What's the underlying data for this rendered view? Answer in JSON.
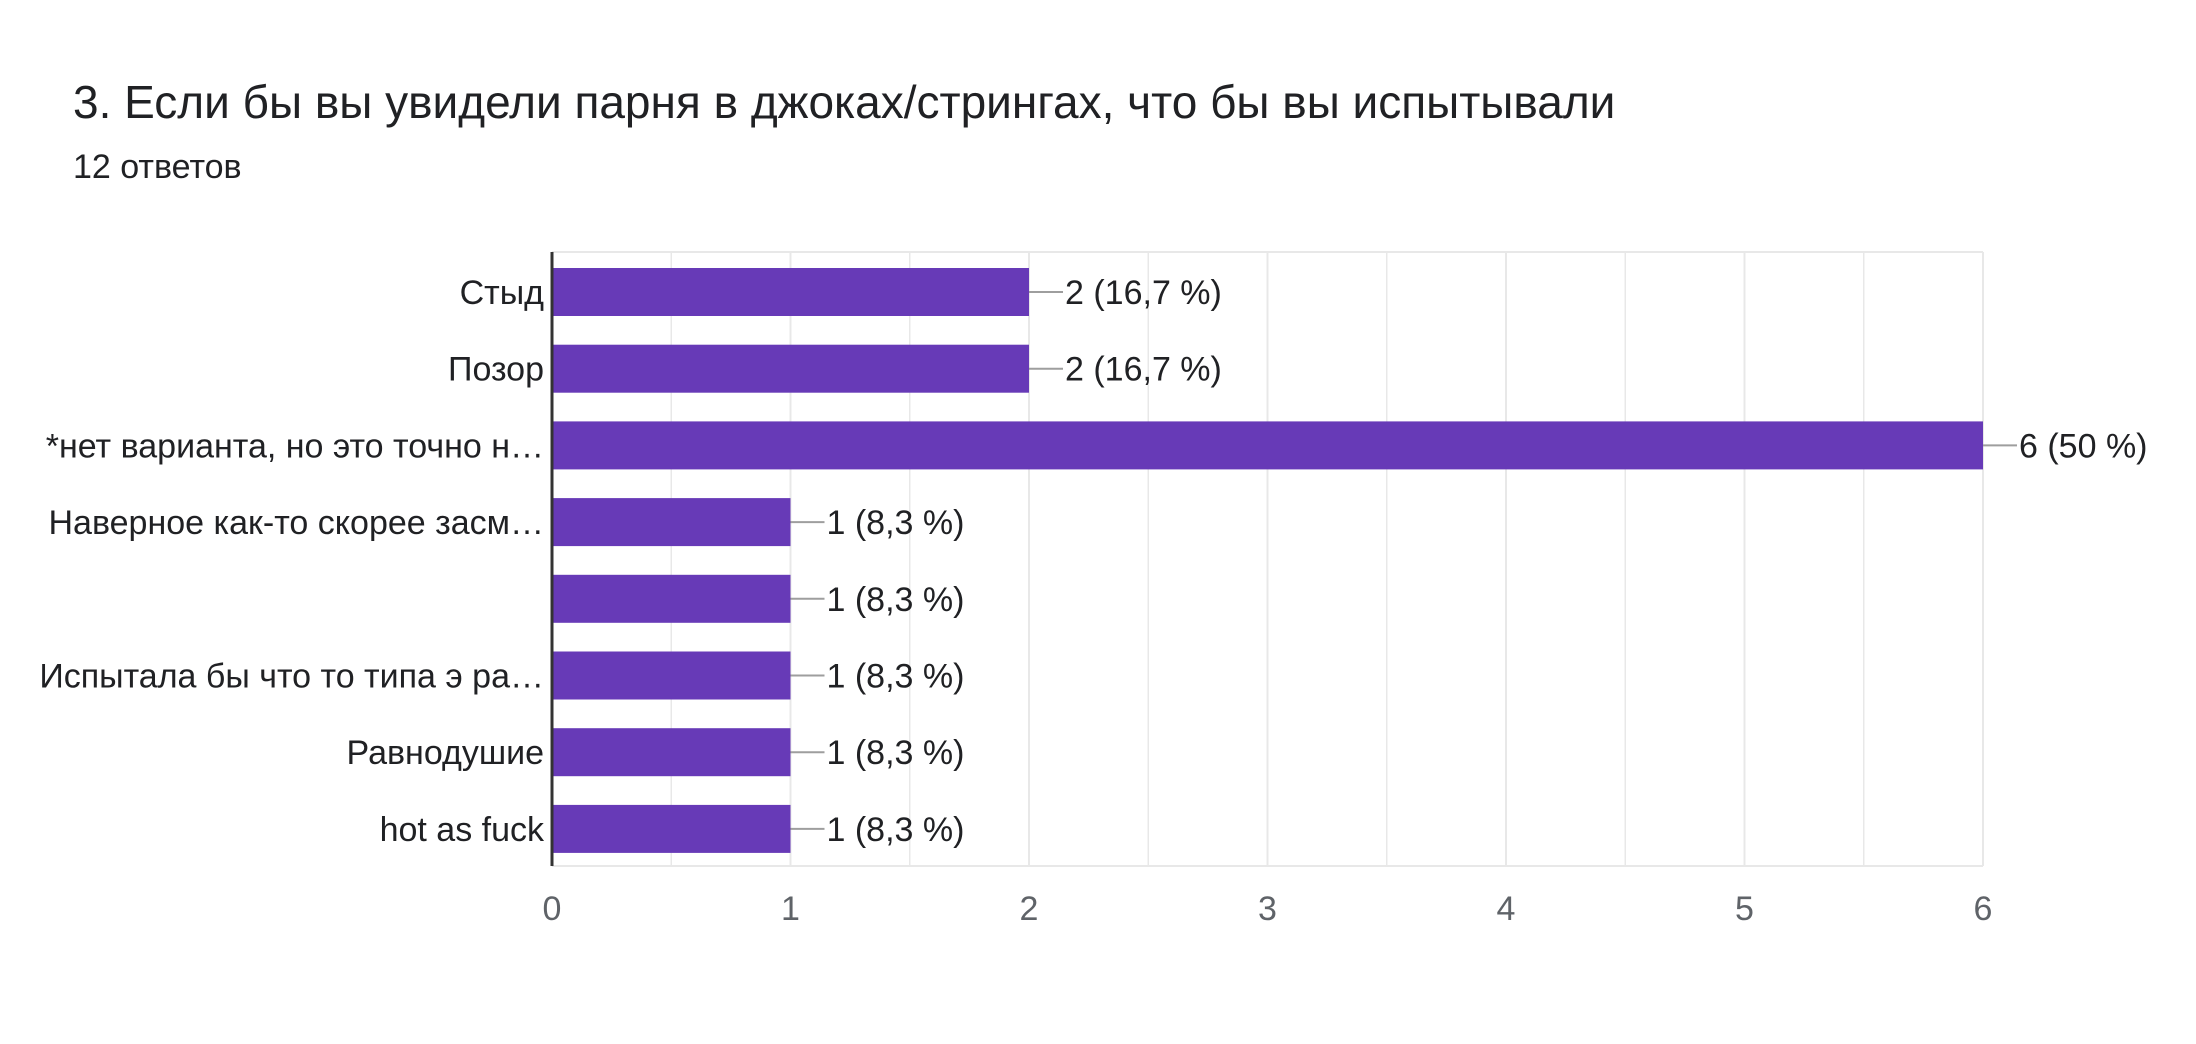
{
  "question": {
    "title": "3. Если бы вы увидели парня в джоках/стрингах, что бы вы испытывали",
    "responses": "12 ответов"
  },
  "colors": {
    "bar": "#673ab7",
    "grid": "#e8e8e8",
    "axis": "#333333",
    "leader": "#9e9e9e"
  },
  "chart_data": {
    "type": "bar",
    "orientation": "horizontal",
    "categories": [
      "Стыд",
      "Позор",
      "*нет варианта, но это точно н…",
      "Наверное как-то скорее засм…",
      "",
      "Испытала бы что то типа э ра…",
      "Равнодушие",
      "hot as fuck"
    ],
    "values": [
      2,
      2,
      6,
      1,
      1,
      1,
      1,
      1
    ],
    "data_labels": [
      "2 (16,7 %)",
      "2 (16,7 %)",
      "6 (50 %)",
      "1 (8,3 %)",
      "1 (8,3 %)",
      "1 (8,3 %)",
      "1 (8,3 %)",
      "1 (8,3 %)"
    ],
    "xlim": [
      0,
      6
    ],
    "xticks": [
      "0",
      "1",
      "2",
      "3",
      "4",
      "5",
      "6"
    ],
    "grid": true
  }
}
